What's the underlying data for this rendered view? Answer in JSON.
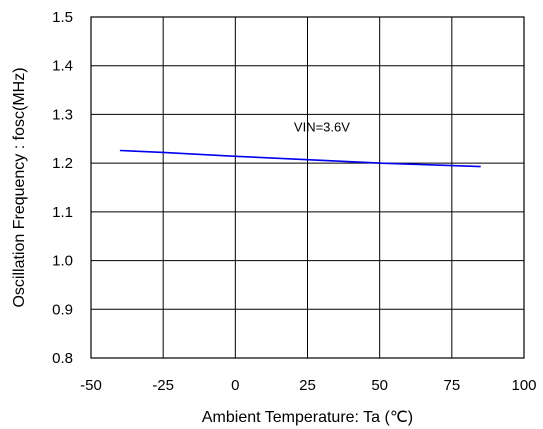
{
  "chart_data": {
    "type": "line",
    "xlabel": "Ambient Temperature: Ta (℃)",
    "ylabel": "Oscillation Frequency : fosc(MHz)",
    "xlim": [
      -50,
      100
    ],
    "ylim": [
      0.8,
      1.5
    ],
    "x_ticks": [
      -50,
      -25,
      0,
      25,
      50,
      75,
      100
    ],
    "y_ticks": [
      "0.8",
      "0.9",
      "1.0",
      "1.1",
      "1.2",
      "1.3",
      "1.4",
      "1.5"
    ],
    "grid": true,
    "series": [
      {
        "color": "#0000ee",
        "x": [
          -40,
          -25,
          0,
          25,
          50,
          75,
          85
        ],
        "y": [
          1.226,
          1.222,
          1.214,
          1.207,
          1.2,
          1.195,
          1.193
        ]
      }
    ],
    "annotations": [
      {
        "text": "VIN=3.6V",
        "x": 30,
        "y": 1.265
      }
    ]
  }
}
